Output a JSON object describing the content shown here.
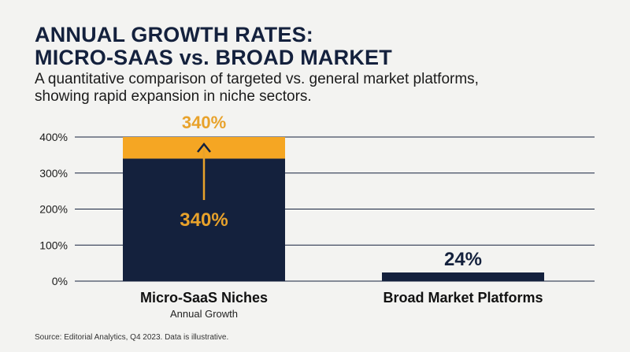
{
  "header": {
    "title_line1": "ANNUAL GROWTH RATES:",
    "title_line2": "MICRO-SAAS vs. BROAD MARKET",
    "subtitle_line1": "A quantitative comparison of targeted vs. general market platforms,",
    "subtitle_line2": "showing rapid expansion in niche sectors."
  },
  "footer": {
    "source": "Source: Editorial Analytics, Q4 2023. Data is illustrative."
  },
  "colors": {
    "navy": "#14213d",
    "amber": "#f5a623",
    "amber_text": "#e8a22b",
    "grid": "#14213d",
    "background": "#f3f3f1"
  },
  "chart_data": {
    "type": "bar",
    "categories": [
      "Micro-SaaS Niches",
      "Broad Market Platforms"
    ],
    "category_sublabels": [
      "Annual Growth",
      ""
    ],
    "values": [
      340,
      24
    ],
    "value_labels": [
      "340%",
      "24%"
    ],
    "overflow_highlight": {
      "category": "Micro-SaaS Niches",
      "from": 340,
      "to": 400,
      "label": "340%"
    },
    "yticks": [
      0,
      100,
      200,
      300,
      400
    ],
    "ytick_labels": [
      "0%",
      "100%",
      "200%",
      "300%",
      "400%"
    ],
    "ylim": [
      0,
      400
    ],
    "grid": true,
    "legend": "none"
  }
}
